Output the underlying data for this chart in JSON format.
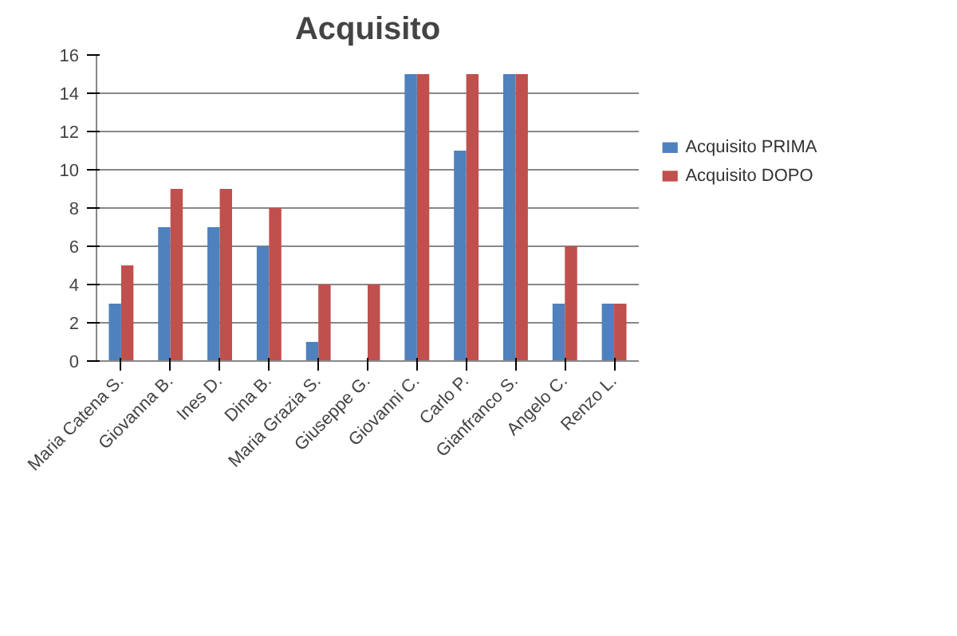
{
  "chart_data": {
    "type": "bar",
    "title": "Acquisito",
    "categories": [
      "Maria Catena S.",
      "Giovanna B.",
      "Ines D.",
      "Dina B.",
      "Maria Grazia S.",
      "Giuseppe G.",
      "Giovanni C.",
      "Carlo P.",
      "Gianfranco S.",
      "Angelo C.",
      "Renzo L."
    ],
    "series": [
      {
        "name": "Acquisito PRIMA",
        "color": "#4f81bd",
        "values": [
          3,
          7,
          7,
          6,
          1,
          0,
          15,
          11,
          15,
          3,
          3
        ]
      },
      {
        "name": "Acquisito DOPO",
        "color": "#c0504d",
        "values": [
          5,
          9,
          9,
          8,
          4,
          4,
          15,
          15,
          15,
          6,
          3
        ]
      }
    ],
    "ylim": [
      0,
      16
    ],
    "yticks": [
      0,
      2,
      4,
      6,
      8,
      10,
      12,
      14,
      16
    ],
    "grid": "y",
    "legend": "right"
  }
}
